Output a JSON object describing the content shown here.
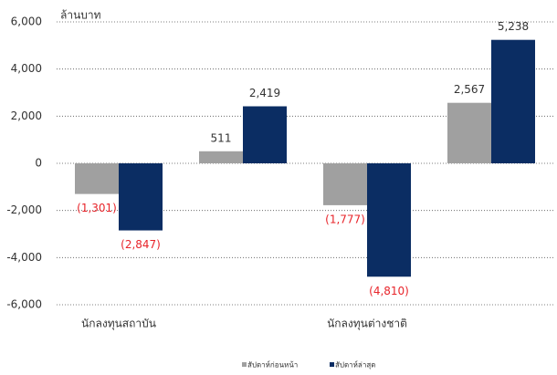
{
  "chart_data": {
    "type": "bar",
    "y_axis_label": "ล้านบาท",
    "categories": [
      "นักลงทุนสถาบัน",
      null,
      "นักลงทุนต่างชาติ",
      null
    ],
    "series": [
      {
        "name": "สัปดาห์ก่อนหน้า",
        "color": "#a0a0a0",
        "values": [
          -1301,
          511,
          -1777,
          2567
        ],
        "value_labels": [
          "(1,301)",
          "511",
          "(1,777)",
          "2,567"
        ]
      },
      {
        "name": "สัปดาห์ล่าสุด",
        "color": "#0b2d63",
        "values": [
          -2847,
          2419,
          -4810,
          5238
        ],
        "value_labels": [
          "(2,847)",
          "2,419",
          "(4,810)",
          "5,238"
        ]
      }
    ],
    "ylim": [
      -6000,
      6000
    ],
    "yticks": [
      {
        "value": -6000,
        "label": "-6,000"
      },
      {
        "value": -4000,
        "label": "-4,000"
      },
      {
        "value": -2000,
        "label": "-2,000"
      },
      0,
      {
        "value": 2000,
        "label": "2,000"
      },
      {
        "value": 4000,
        "label": "4,000"
      },
      {
        "value": 6000,
        "label": "6,000"
      }
    ],
    "grid": true,
    "legend": "bottom"
  }
}
